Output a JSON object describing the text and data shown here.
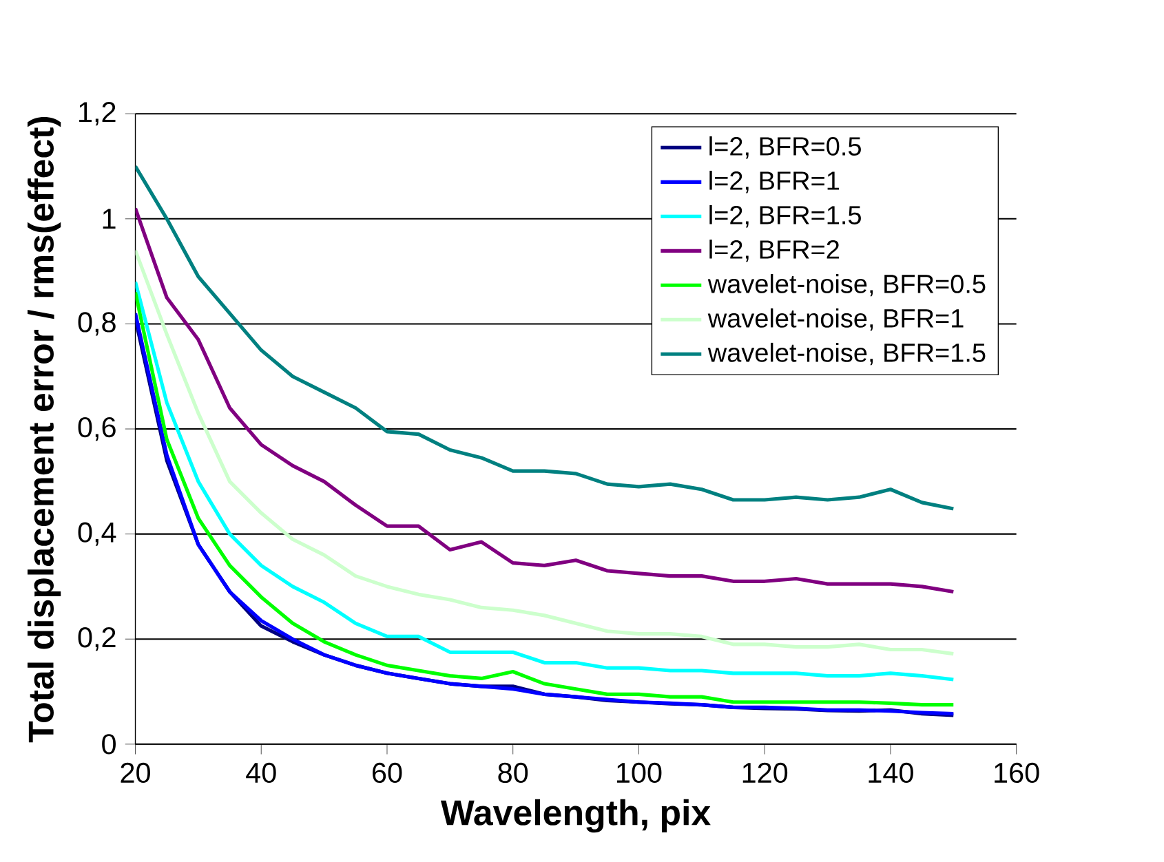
{
  "chart_data": {
    "type": "line",
    "xlabel": "Wavelength, pix",
    "ylabel": "Total displacement error / rms(effect)",
    "x": [
      20,
      25,
      30,
      35,
      40,
      45,
      50,
      55,
      60,
      65,
      70,
      75,
      80,
      85,
      90,
      95,
      100,
      105,
      110,
      115,
      120,
      125,
      130,
      135,
      140,
      145,
      150
    ],
    "xlim": [
      20,
      160
    ],
    "xticks": [
      20,
      40,
      60,
      80,
      100,
      120,
      140,
      160
    ],
    "ylim": [
      0,
      1.2
    ],
    "yticks": [
      {
        "value": 0,
        "label": "0"
      },
      {
        "value": 0.2,
        "label": "0,2"
      },
      {
        "value": 0.4,
        "label": "0,4"
      },
      {
        "value": 0.6,
        "label": "0,6"
      },
      {
        "value": 0.8,
        "label": "0,8"
      },
      {
        "value": 1,
        "label": "1"
      },
      {
        "value": 1.2,
        "label": "1,2"
      }
    ],
    "grid": "y",
    "legend": "top right",
    "marker": "none",
    "line_style": "solid",
    "series": [
      {
        "name": "l=2, BFR=0.5",
        "color": "#000080",
        "values": [
          0.81,
          0.54,
          0.38,
          0.29,
          0.225,
          0.195,
          0.17,
          0.15,
          0.135,
          0.125,
          0.115,
          0.11,
          0.11,
          0.095,
          0.09,
          0.083,
          0.08,
          0.077,
          0.075,
          0.07,
          0.068,
          0.067,
          0.064,
          0.063,
          0.065,
          0.058,
          0.055
        ]
      },
      {
        "name": "l=2, BFR=1",
        "color": "#0000ff",
        "values": [
          0.82,
          0.55,
          0.38,
          0.29,
          0.235,
          0.2,
          0.17,
          0.15,
          0.135,
          0.125,
          0.115,
          0.11,
          0.105,
          0.095,
          0.09,
          0.085,
          0.08,
          0.078,
          0.075,
          0.07,
          0.07,
          0.068,
          0.065,
          0.065,
          0.063,
          0.06,
          0.058
        ]
      },
      {
        "name": "l=2, BFR=1.5",
        "color": "#00ffff",
        "values": [
          0.88,
          0.65,
          0.5,
          0.4,
          0.34,
          0.3,
          0.27,
          0.23,
          0.205,
          0.205,
          0.175,
          0.175,
          0.175,
          0.155,
          0.155,
          0.145,
          0.145,
          0.14,
          0.14,
          0.135,
          0.135,
          0.135,
          0.13,
          0.13,
          0.135,
          0.13,
          0.123
        ]
      },
      {
        "name": "l=2, BFR=2",
        "color": "#800080",
        "values": [
          1.02,
          0.85,
          0.77,
          0.64,
          0.57,
          0.53,
          0.5,
          0.455,
          0.415,
          0.415,
          0.37,
          0.385,
          0.345,
          0.34,
          0.35,
          0.33,
          0.325,
          0.32,
          0.32,
          0.31,
          0.31,
          0.315,
          0.305,
          0.305,
          0.305,
          0.3,
          0.29
        ]
      },
      {
        "name": "wavelet-noise, BFR=0.5",
        "color": "#00ff00",
        "values": [
          0.86,
          0.58,
          0.43,
          0.34,
          0.28,
          0.23,
          0.195,
          0.17,
          0.15,
          0.14,
          0.13,
          0.125,
          0.138,
          0.115,
          0.105,
          0.095,
          0.095,
          0.09,
          0.09,
          0.08,
          0.08,
          0.08,
          0.08,
          0.08,
          0.078,
          0.075,
          0.075
        ]
      },
      {
        "name": "wavelet-noise, BFR=1",
        "color": "#ccffcc",
        "values": [
          0.94,
          0.78,
          0.63,
          0.5,
          0.44,
          0.39,
          0.36,
          0.32,
          0.3,
          0.285,
          0.275,
          0.26,
          0.255,
          0.245,
          0.23,
          0.215,
          0.21,
          0.21,
          0.205,
          0.19,
          0.19,
          0.185,
          0.185,
          0.19,
          0.18,
          0.18,
          0.172
        ]
      },
      {
        "name": "wavelet-noise, BFR=1.5",
        "color": "#008080",
        "values": [
          1.1,
          1.0,
          0.89,
          0.82,
          0.75,
          0.7,
          0.67,
          0.64,
          0.595,
          0.59,
          0.56,
          0.545,
          0.52,
          0.52,
          0.515,
          0.495,
          0.49,
          0.495,
          0.485,
          0.465,
          0.465,
          0.47,
          0.465,
          0.47,
          0.485,
          0.46,
          0.448
        ]
      }
    ]
  }
}
